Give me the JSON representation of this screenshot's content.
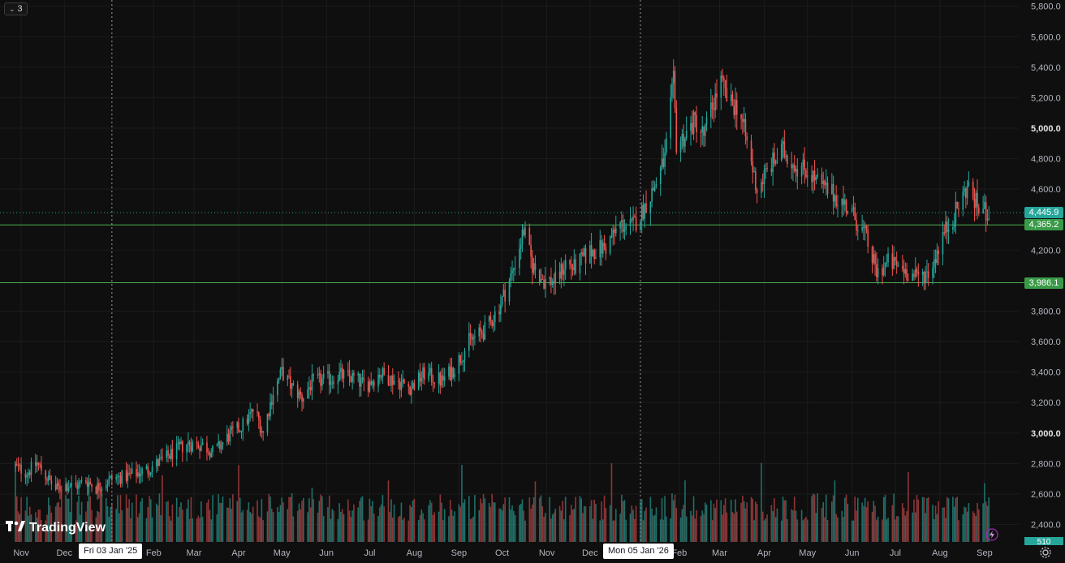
{
  "series_selector": {
    "label": "3"
  },
  "branding": {
    "logo_text": "TradingView"
  },
  "crosshair_tags": [
    {
      "label": "Fri 03 Jan '25"
    },
    {
      "label": "Mon 05 Jan '26"
    }
  ],
  "price_tags": {
    "last": "4,445.9",
    "line1": "4,365.2",
    "line2": "3,986.1",
    "volume": "510"
  },
  "colors": {
    "background": "#0f0f0f",
    "up": "#26a69a",
    "down": "#ef5350",
    "up_volume": "#1f6f68",
    "down_volume": "#8c3537",
    "grid": "#1c1c1c",
    "horizontal_line": "#4caf50",
    "last_price_line": "#26a69a"
  },
  "icons": [
    "chevron-down-icon",
    "tradingview-logo-icon",
    "lightning-icon",
    "gear-icon"
  ],
  "chart_data": {
    "type": "candlestick",
    "x_axis": {
      "tick_labels": [
        "Nov",
        "Dec",
        "Feb",
        "Mar",
        "Apr",
        "May",
        "Jun",
        "Jul",
        "Aug",
        "Sep",
        "Oct",
        "Nov",
        "Dec",
        "Feb",
        "Mar",
        "Apr",
        "May",
        "Jun",
        "Jul",
        "Aug",
        "Sep"
      ]
    },
    "y_axis": {
      "tick_labels": [
        "5,800.0",
        "5,600.0",
        "5,400.0",
        "5,200.0",
        "5,000.0",
        "4,800.0",
        "4,600.0",
        "4,200.0",
        "3,800.0",
        "3,600.0",
        "3,400.0",
        "3,200.0",
        "3,000.0",
        "2,800.0",
        "2,600.0",
        "2,400.0"
      ],
      "ticks": [
        5800,
        5600,
        5400,
        5200,
        5000,
        4800,
        4600,
        4200,
        3800,
        3600,
        3400,
        3200,
        3000,
        2800,
        2600,
        2400
      ],
      "major_ticks": [
        5000,
        3000
      ],
      "range": [
        2300,
        5900
      ]
    },
    "horizontal_lines": [
      4365.2,
      3986.1
    ],
    "last_price": 4445.9,
    "grid": true,
    "price_anchors": [
      [
        "2024-10-28",
        2780
      ],
      [
        "2024-11-05",
        2740
      ],
      [
        "2024-11-12",
        2800
      ],
      [
        "2024-11-18",
        2720
      ],
      [
        "2024-11-25",
        2630
      ],
      [
        "2024-12-02",
        2660
      ],
      [
        "2024-12-09",
        2650
      ],
      [
        "2024-12-16",
        2690
      ],
      [
        "2024-12-23",
        2640
      ],
      [
        "2025-01-03",
        2700
      ],
      [
        "2025-01-15",
        2720
      ],
      [
        "2025-01-28",
        2760
      ],
      [
        "2025-02-10",
        2840
      ],
      [
        "2025-02-24",
        2930
      ],
      [
        "2025-03-07",
        2920
      ],
      [
        "2025-03-15",
        2870
      ],
      [
        "2025-03-25",
        2980
      ],
      [
        "2025-04-05",
        3060
      ],
      [
        "2025-04-12",
        3160
      ],
      [
        "2025-04-18",
        3000
      ],
      [
        "2025-04-25",
        3270
      ],
      [
        "2025-05-01",
        3400
      ],
      [
        "2025-05-08",
        3300
      ],
      [
        "2025-05-15",
        3230
      ],
      [
        "2025-05-22",
        3330
      ],
      [
        "2025-06-01",
        3350
      ],
      [
        "2025-06-10",
        3380
      ],
      [
        "2025-06-20",
        3360
      ],
      [
        "2025-06-28",
        3310
      ],
      [
        "2025-07-08",
        3390
      ],
      [
        "2025-07-20",
        3340
      ],
      [
        "2025-07-30",
        3300
      ],
      [
        "2025-08-08",
        3390
      ],
      [
        "2025-08-20",
        3340
      ],
      [
        "2025-08-29",
        3430
      ],
      [
        "2025-09-08",
        3600
      ],
      [
        "2025-09-20",
        3680
      ],
      [
        "2025-09-30",
        3850
      ],
      [
        "2025-10-08",
        4050
      ],
      [
        "2025-10-16",
        4330
      ],
      [
        "2025-10-22",
        4100
      ],
      [
        "2025-10-30",
        4000
      ],
      [
        "2025-11-08",
        4000
      ],
      [
        "2025-11-14",
        4120
      ],
      [
        "2025-11-20",
        4080
      ],
      [
        "2025-12-01",
        4190
      ],
      [
        "2025-12-12",
        4220
      ],
      [
        "2025-12-22",
        4370
      ],
      [
        "2025-12-30",
        4350
      ],
      [
        "2026-01-06",
        4450
      ],
      [
        "2026-01-14",
        4600
      ],
      [
        "2026-01-22",
        4800
      ],
      [
        "2026-01-28",
        5300
      ],
      [
        "2026-01-30",
        4900
      ],
      [
        "2026-02-05",
        4950
      ],
      [
        "2026-02-12",
        5050
      ],
      [
        "2026-02-18",
        4950
      ],
      [
        "2026-02-24",
        5150
      ],
      [
        "2026-03-02",
        5300
      ],
      [
        "2026-03-08",
        5150
      ],
      [
        "2026-03-14",
        5150
      ],
      [
        "2026-03-20",
        4900
      ],
      [
        "2026-03-27",
        4600
      ],
      [
        "2026-04-05",
        4750
      ],
      [
        "2026-04-14",
        4850
      ],
      [
        "2026-04-24",
        4750
      ],
      [
        "2026-05-02",
        4720
      ],
      [
        "2026-05-10",
        4620
      ],
      [
        "2026-05-20",
        4560
      ],
      [
        "2026-05-30",
        4470
      ],
      [
        "2026-06-10",
        4300
      ],
      [
        "2026-06-18",
        4050
      ],
      [
        "2026-06-26",
        4120
      ],
      [
        "2026-07-06",
        4080
      ],
      [
        "2026-07-15",
        4020
      ],
      [
        "2026-07-25",
        4060
      ],
      [
        "2026-08-03",
        4300
      ],
      [
        "2026-08-12",
        4450
      ],
      [
        "2026-08-20",
        4620
      ],
      [
        "2026-08-28",
        4470
      ],
      [
        "2026-09-05",
        4445.9
      ]
    ]
  }
}
